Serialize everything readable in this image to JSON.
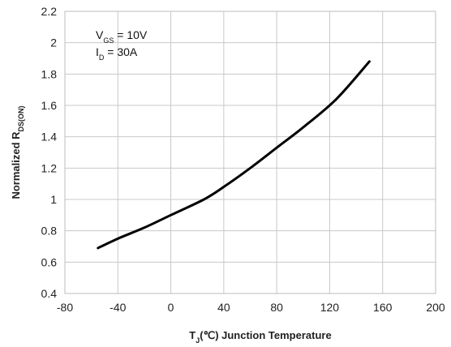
{
  "chart_data": {
    "type": "line",
    "xlabel": {
      "prefix": "T",
      "sub": "J",
      "suffix": "(℃) Junction Temperature"
    },
    "ylabel": {
      "prefix": "Normalized R",
      "sub": "DS(ON)"
    },
    "xlim": [
      -80,
      200
    ],
    "ylim": [
      0.4,
      2.2
    ],
    "xticks": [
      -80,
      -40,
      0,
      40,
      80,
      120,
      160,
      200
    ],
    "yticks": [
      0.4,
      0.6,
      0.8,
      1,
      1.2,
      1.4,
      1.6,
      1.8,
      2,
      2.2
    ],
    "grid": true,
    "annotations": [
      {
        "prefix": "V",
        "sub": "GS",
        "suffix": " = 10V"
      },
      {
        "prefix": "I",
        "sub": "D",
        "suffix": " = 30A"
      }
    ],
    "series": [
      {
        "color": "#000000",
        "x": [
          -55,
          -40,
          -20,
          0,
          25,
          40,
          60,
          80,
          100,
          125,
          150
        ],
        "y": [
          0.69,
          0.75,
          0.82,
          0.9,
          1.0,
          1.08,
          1.2,
          1.33,
          1.46,
          1.64,
          1.88
        ]
      }
    ]
  }
}
